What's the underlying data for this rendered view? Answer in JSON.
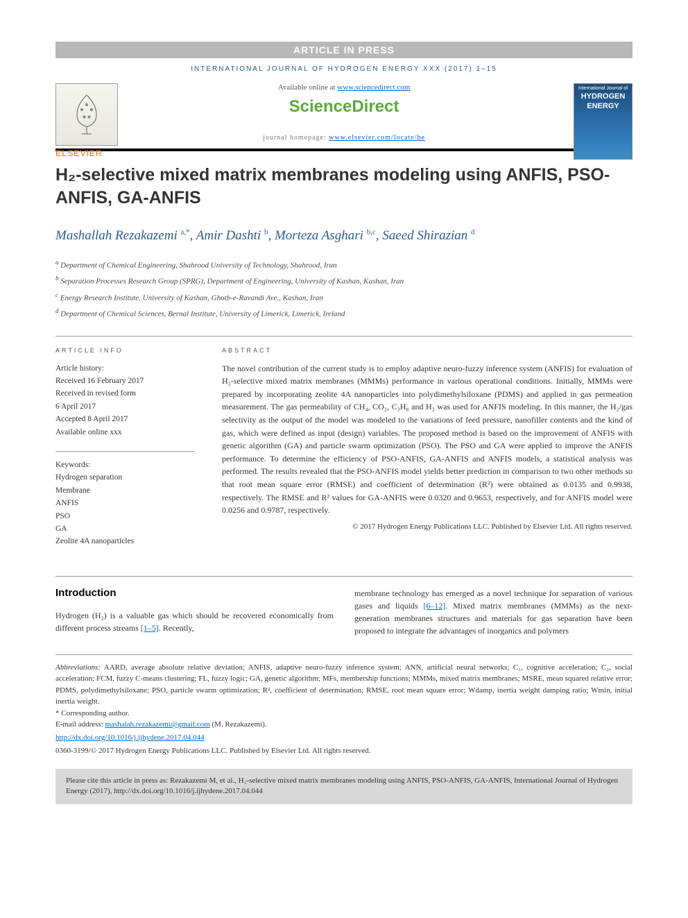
{
  "banner": "ARTICLE IN PRESS",
  "journal_ref": "INTERNATIONAL JOURNAL OF HYDROGEN ENERGY XXX (2017) 1–15",
  "header": {
    "available_prefix": "Available online at ",
    "available_url": "www.sciencedirect.com",
    "sciencedirect": "ScienceDirect",
    "homepage_prefix": "journal homepage: ",
    "homepage_url": "www.elsevier.com/locate/he",
    "elsevier": "ELSEVIER",
    "cover_small": "International Journal of",
    "cover_line1": "HYDROGEN",
    "cover_line2": "ENERGY"
  },
  "title": "H₂-selective mixed matrix membranes modeling using ANFIS, PSO-ANFIS, GA-ANFIS",
  "authors_html": "Mashallah Rezakazemi <sup>a,*</sup>, Amir Dashti <sup>b</sup>, Morteza Asghari <sup>b,c</sup>, Saeed Shirazian <sup>d</sup>",
  "affiliations": [
    {
      "sup": "a",
      "text": "Department of Chemical Engineering, Shahrood University of Technology, Shahrood, Iran"
    },
    {
      "sup": "b",
      "text": "Separation Processes Research Group (SPRG), Department of Engineering, University of Kashan, Kashan, Iran"
    },
    {
      "sup": "c",
      "text": "Energy Research Institute, University of Kashan, Ghotb-e-Ravandi Ave., Kashan, Iran"
    },
    {
      "sup": "d",
      "text": "Department of Chemical Sciences, Bernal Institute, University of Limerick, Limerick, Ireland"
    }
  ],
  "article_info": {
    "label": "ARTICLE INFO",
    "history_label": "Article history:",
    "received": "Received 16 February 2017",
    "revised1": "Received in revised form",
    "revised2": "6 April 2017",
    "accepted": "Accepted 8 April 2017",
    "available": "Available online xxx",
    "keywords_label": "Keywords:",
    "keywords": [
      "Hydrogen separation",
      "Membrane",
      "ANFIS",
      "PSO",
      "GA",
      "Zeolite 4A nanoparticles"
    ]
  },
  "abstract": {
    "label": "ABSTRACT",
    "text": "The novel contribution of the current study is to employ adaptive neuro-fuzzy inference system (ANFIS) for evaluation of H₂-selective mixed matrix membranes (MMMs) performance in various operational conditions. Initially, MMMs were prepared by incorporating zeolite 4A nanoparticles into polydimethylsiloxane (PDMS) and applied in gas permeation measurement. The gas permeability of CH₄, CO₂, C₃H₈ and H₂ was used for ANFIS modeling. In this manner, the H₂/gas selectivity as the output of the model was modeled to the variations of feed pressure, nanofiller contents and the kind of gas, which were defined as input (design) variables. The proposed method is based on the improvement of ANFIS with genetic algorithm (GA) and particle swarm optimization (PSO). The PSO and GA were applied to improve the ANFIS performance. To determine the efficiency of PSO-ANFIS, GA-ANFIS and ANFIS models, a statistical analysis was performed. The results revealed that the PSO-ANFIS model yields better prediction in comparison to two other methods so that root mean square error (RMSE) and coefficient of determination (R²) were obtained as 0.0135 and 0.9938, respectively. The RMSE and R² values for GA-ANFIS were 0.0320 and 0.9653, respectively, and for ANFIS model were 0.0256 and 0.9787, respectively.",
    "copyright": "© 2017 Hydrogen Energy Publications LLC. Published by Elsevier Ltd. All rights reserved."
  },
  "introduction": {
    "heading": "Introduction",
    "col1": "Hydrogen (H₂) is a valuable gas which should be recovered economically from different process streams [1–5]. Recently,",
    "col2": "membrane technology has emerged as a novel technique for separation of various gases and liquids [6–12]. Mixed matrix membranes (MMMs) as the next-generation membranes structures and materials for gas separation have been proposed to integrate the advantages of inorganics and polymers"
  },
  "footer": {
    "abbrev_label": "Abbreviations:",
    "abbrev_text": " AARD, average absolute relative deviation; ANFIS, adaptive neuro-fuzzy inference system; ANN, artificial neural networks; C₁, cognitive acceleration; C₂, social acceleration; FCM, fuzzy C-means clustering; FL, fuzzy logic; GA, genetic algorithm; MFs, membership functions; MMMs, mixed matrix membranes; MSRE, mean squared relative error; PDMS, polydimethylsiloxane; PSO, particle swarm optimization; R², coefficient of determination; RMSE, root mean square error; Wdamp, inertia weight damping ratio; Wmin, initial inertia weight.",
    "corresponding": "* Corresponding author.",
    "email_label": "E-mail address: ",
    "email": "mashalah.rezakazemi@gmail.com",
    "email_suffix": " (M. Rezakazemi).",
    "doi": "http://dx.doi.org/10.1016/j.ijhydene.2017.04.044",
    "issn": "0360-3199/© 2017 Hydrogen Energy Publications LLC. Published by Elsevier Ltd. All rights reserved."
  },
  "cite_box": "Please cite this article in press as: Rezakazemi M, et al., H₂-selective mixed matrix membranes modeling using ANFIS, PSO-ANFIS, GA-ANFIS, International Journal of Hydrogen Energy (2017), http://dx.doi.org/10.1016/j.ijhydene.2017.04.044"
}
